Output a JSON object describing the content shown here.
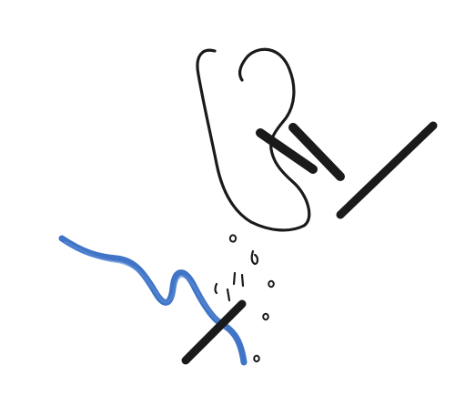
{
  "illustration": {
    "subject": "ear-with-sound-cancel-icon",
    "colors": {
      "ink": "#1a1a1a",
      "accent_blue": "#3f74c6"
    }
  }
}
